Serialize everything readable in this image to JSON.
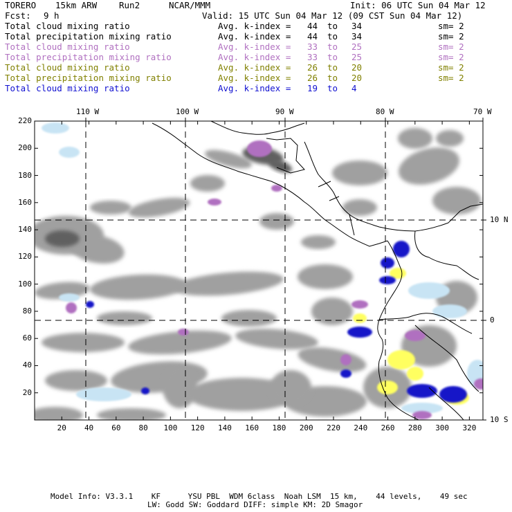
{
  "header": {
    "model_name": "TORERO",
    "resolution": "15km ARW",
    "run": "Run2",
    "org": "NCAR/MMM",
    "init": "Init: 06 UTC Sun 04 Mar 12",
    "fcst_label": "Fcst:",
    "fcst_value": "9 h",
    "valid": "Valid: 15 UTC Sun 04 Mar 12 (09 CST Sun 04 Mar 12)"
  },
  "fields": [
    {
      "name": "Total cloud mixing ratio",
      "kindex_label": "Avg. k-index =",
      "k_from": "44",
      "to": "to",
      "k_to": "34",
      "sm": "sm= 2",
      "color": "#000000"
    },
    {
      "name": "Total precipitation mixing ratio",
      "kindex_label": "Avg. k-index =",
      "k_from": "44",
      "to": "to",
      "k_to": "34",
      "sm": "sm= 2",
      "color": "#000000"
    },
    {
      "name": "Total cloud mixing ratio",
      "kindex_label": "Avg. k-index =",
      "k_from": "33",
      "to": "to",
      "k_to": "25",
      "sm": "sm= 2",
      "color": "#b070c0"
    },
    {
      "name": "Total precipitation mixing ratio",
      "kindex_label": "Avg. k-index =",
      "k_from": "33",
      "to": "to",
      "k_to": "25",
      "sm": "sm= 2",
      "color": "#b070c0"
    },
    {
      "name": "Total cloud mixing ratio",
      "kindex_label": "Avg. k-index =",
      "k_from": "26",
      "to": "to",
      "k_to": "20",
      "sm": "sm= 2",
      "color": "#808000"
    },
    {
      "name": "Total precipitation mixing ratio",
      "kindex_label": "Avg. k-index =",
      "k_from": "26",
      "to": "to",
      "k_to": "20",
      "sm": "sm= 2",
      "color": "#808000"
    },
    {
      "name": "Total cloud mixing ratio",
      "kindex_label": "Avg. k-index =",
      "k_from": "19",
      "to": "to",
      "k_to": "4",
      "sm": "",
      "color": "#1010d0"
    }
  ],
  "map": {
    "lon_labels": [
      "110 W",
      "100 W",
      "90 W",
      "80 W",
      "70 W"
    ],
    "lat_labels": [
      "10 N",
      "0",
      "10 S"
    ],
    "y_ticks": [
      "20",
      "40",
      "60",
      "80",
      "100",
      "120",
      "140",
      "160",
      "180",
      "200",
      "220"
    ],
    "x_ticks": [
      "20",
      "40",
      "60",
      "80",
      "100",
      "120",
      "140",
      "160",
      "180",
      "200",
      "220",
      "240",
      "260",
      "280",
      "300",
      "320"
    ],
    "colors": {
      "gray": "#a0a0a0",
      "dark_gray": "#606060",
      "light_blue": "#c8e4f4",
      "blue": "#1818c8",
      "yellow": "#ffff60",
      "purple": "#b070c0"
    }
  },
  "footer": {
    "line1": "Model Info: V3.3.1    KF      YSU PBL  WDM 6class  Noah LSM  15 km,    44 levels,    49 sec",
    "line2": "LW: Godd SW: Goddard DIFF: simple KM: 2D Smagor"
  }
}
